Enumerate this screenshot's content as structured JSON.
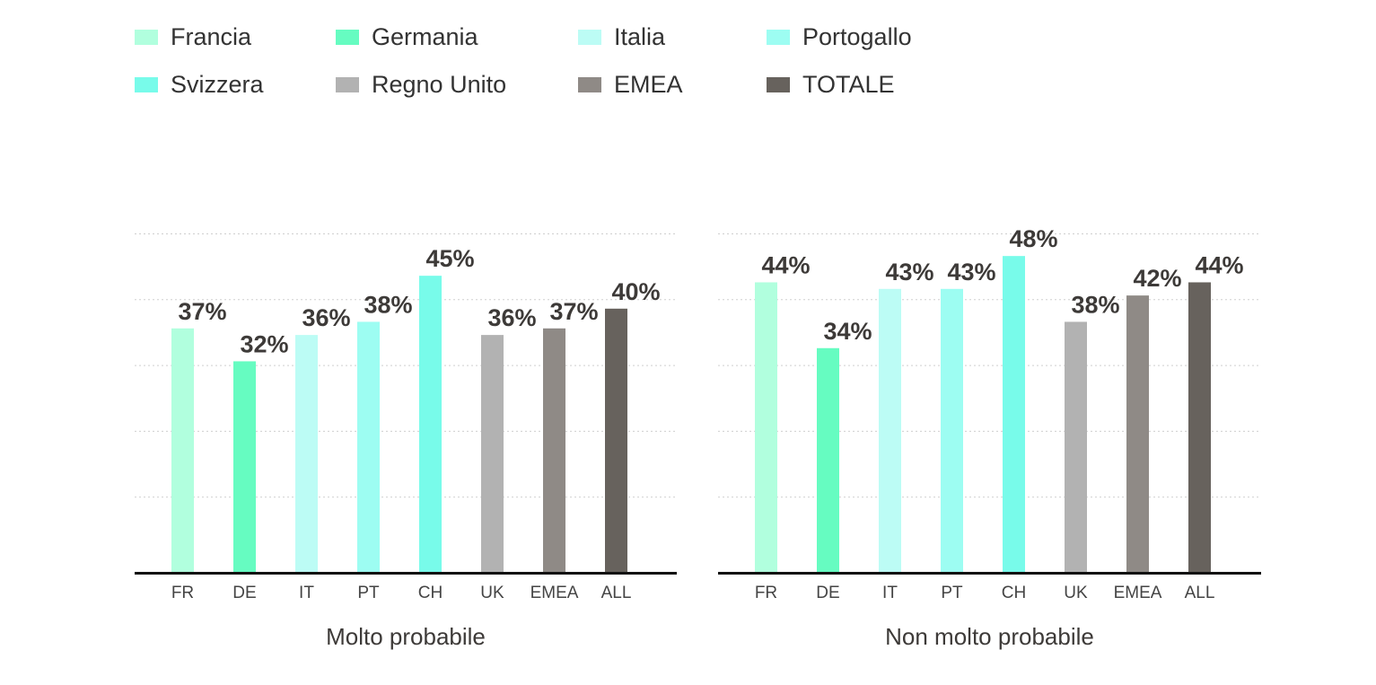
{
  "legend": [
    {
      "label": "Francia",
      "color": "#b1ffde"
    },
    {
      "label": "Germania",
      "color": "#66fcc1"
    },
    {
      "label": "Italia",
      "color": "#bcfcf5"
    },
    {
      "label": "Portogallo",
      "color": "#9dfdf2"
    },
    {
      "label": "Svizzera",
      "color": "#78fbea"
    },
    {
      "label": "Regno Unito",
      "color": "#b2b2b2"
    },
    {
      "label": "EMEA",
      "color": "#8f8a86"
    },
    {
      "label": "TOTALE",
      "color": "#67625d"
    }
  ],
  "chart_data": [
    {
      "type": "bar",
      "title": "Molto probabile",
      "categories": [
        "FR",
        "DE",
        "IT",
        "PT",
        "CH",
        "UK",
        "EMEA",
        "ALL"
      ],
      "values": [
        37,
        32,
        36,
        38,
        45,
        36,
        37,
        40
      ],
      "value_labels": [
        "37%",
        "32%",
        "36%",
        "38%",
        "45%",
        "36%",
        "37%",
        "40%"
      ],
      "colors": [
        "#b1ffde",
        "#66fcc1",
        "#bcfcf5",
        "#9dfdf2",
        "#78fbea",
        "#b2b2b2",
        "#8f8a86",
        "#67625d"
      ],
      "ylim": [
        0,
        60
      ],
      "grid": true
    },
    {
      "type": "bar",
      "title": "Non molto probabile",
      "categories": [
        "FR",
        "DE",
        "IT",
        "PT",
        "CH",
        "UK",
        "EMEA",
        "ALL"
      ],
      "values": [
        44,
        34,
        43,
        43,
        48,
        38,
        42,
        44
      ],
      "value_labels": [
        "44%",
        "34%",
        "43%",
        "43%",
        "48%",
        "38%",
        "42%",
        "44%"
      ],
      "colors": [
        "#b1ffde",
        "#66fcc1",
        "#bcfcf5",
        "#9dfdf2",
        "#78fbea",
        "#b2b2b2",
        "#8f8a86",
        "#67625d"
      ],
      "ylim": [
        0,
        60
      ],
      "grid": true
    }
  ]
}
